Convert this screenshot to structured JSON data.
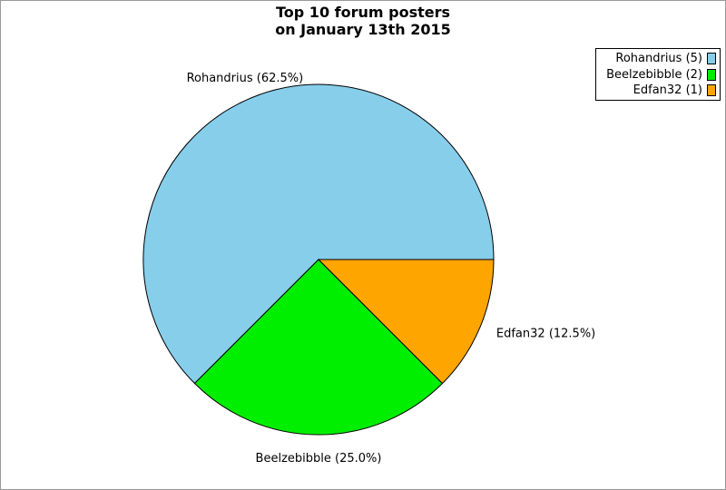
{
  "page": {
    "background": "#ffffff",
    "frame_border_color": "#999999"
  },
  "title": {
    "line1": "Top 10 forum posters",
    "line2": "on January 13th 2015"
  },
  "legend": {
    "position": "top-right",
    "items": [
      {
        "label": "Rohandrius (5)",
        "color": "#87CEEB"
      },
      {
        "label": "Beelzebibble (2)",
        "color": "#00EE00"
      },
      {
        "label": "Edfan32 (1)",
        "color": "#FFA500"
      }
    ]
  },
  "chart_data": {
    "type": "pie",
    "title": "Top 10 forum posters on January 13th 2015",
    "total": 8,
    "start_angle_deg": 0,
    "direction": "counterclockwise",
    "legend_position": "top-right",
    "slices": [
      {
        "name": "Rohandrius",
        "value": 5,
        "percent": 62.5,
        "label": "Rohandrius (62.5%)",
        "color": "#87CEEB"
      },
      {
        "name": "Beelzebibble",
        "value": 2,
        "percent": 25.0,
        "label": "Beelzebibble (25.0%)",
        "color": "#00EE00"
      },
      {
        "name": "Edfan32",
        "value": 1,
        "percent": 12.5,
        "label": "Edfan32 (12.5%)",
        "color": "#FFA500"
      }
    ]
  }
}
